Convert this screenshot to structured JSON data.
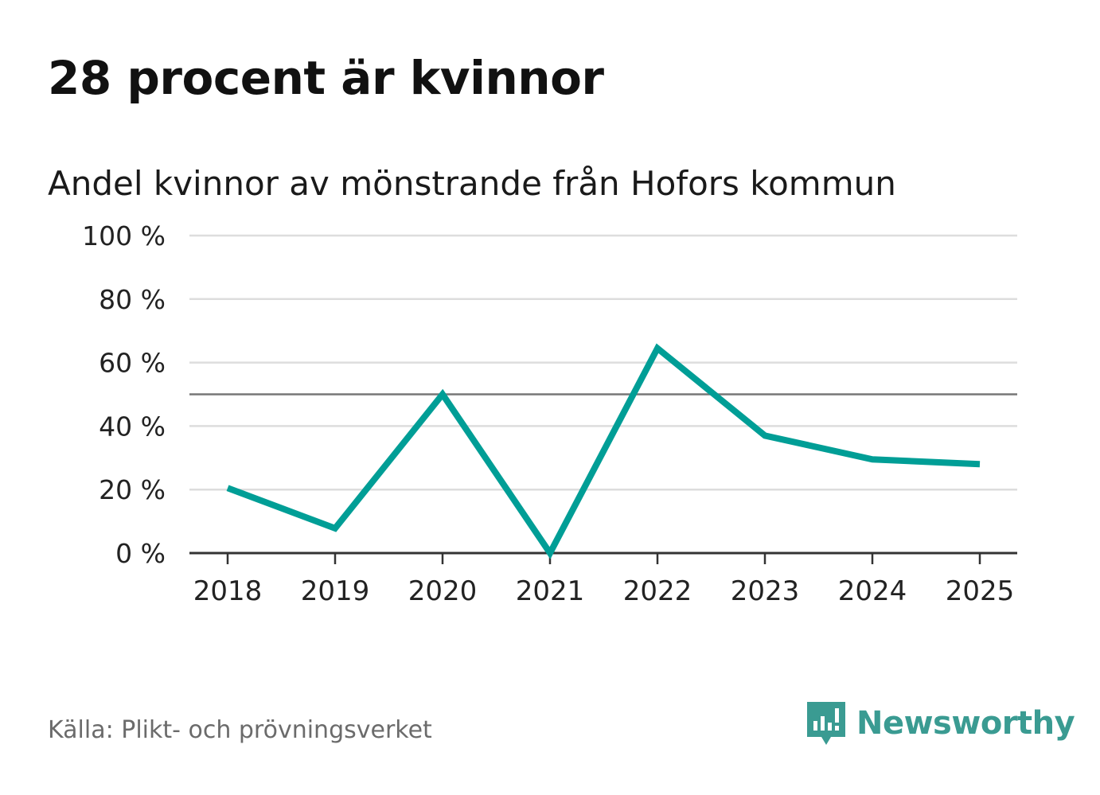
{
  "title": "28 procent är kvinnor",
  "subtitle": "Andel kvinnor av mönstrande från Hofors kommun",
  "source": "Källa: Plikt- och prövningsverket",
  "brand": {
    "name": "Newsworthy",
    "icon": "newsworthy-logo-icon",
    "color": "#3a9b92"
  },
  "colors": {
    "line": "#009e96",
    "grid": "#dddddd",
    "reference": "#777777",
    "axis": "#333333"
  },
  "chart_data": {
    "type": "line",
    "title": "Andel kvinnor av mönstrande från Hofors kommun",
    "xlabel": "",
    "ylabel": "",
    "categories": [
      "2018",
      "2019",
      "2020",
      "2021",
      "2022",
      "2023",
      "2024",
      "2025"
    ],
    "series": [
      {
        "name": "Andel kvinnor",
        "values": [
          20.5,
          7.8,
          50,
          0,
          64.5,
          37,
          29.5,
          28
        ]
      }
    ],
    "reference_line": 50,
    "ylim": [
      0,
      100
    ],
    "yticks": [
      0,
      20,
      40,
      60,
      80,
      100
    ],
    "ytick_labels": [
      "0 %",
      "20 %",
      "40 %",
      "60 %",
      "80 %",
      "100 %"
    ],
    "grid": true
  }
}
